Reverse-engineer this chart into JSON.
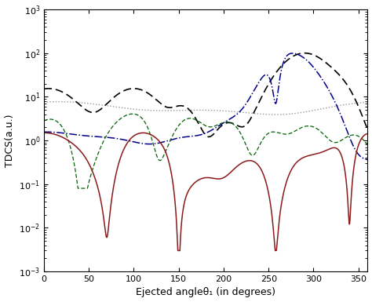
{
  "xlabel": "Ejected angleθ₁ (in degrees)",
  "ylabel": "TDCS(a.u.)",
  "xlim": [
    0,
    360
  ],
  "ylim": [
    0.001,
    1000.0
  ],
  "xticks": [
    0,
    50,
    100,
    150,
    200,
    250,
    300,
    350
  ],
  "background_color": "#ffffff",
  "curves": {
    "dark_red_solid": {
      "color": "#8B1a1a",
      "linestyle": "solid",
      "linewidth": 1.1
    },
    "black_dashed": {
      "color": "#000000",
      "linestyle": "dashed",
      "linewidth": 1.2,
      "dashes": [
        6,
        3
      ]
    },
    "blue_dashdot": {
      "color": "#00008B",
      "linestyle": "dashdot",
      "linewidth": 1.1
    },
    "green_dashed": {
      "color": "#006400",
      "linestyle": "dashed",
      "linewidth": 0.9,
      "dashes": [
        4,
        2
      ]
    },
    "gray_dotted": {
      "color": "#999999",
      "linestyle": "dotted",
      "linewidth": 1.0
    }
  }
}
